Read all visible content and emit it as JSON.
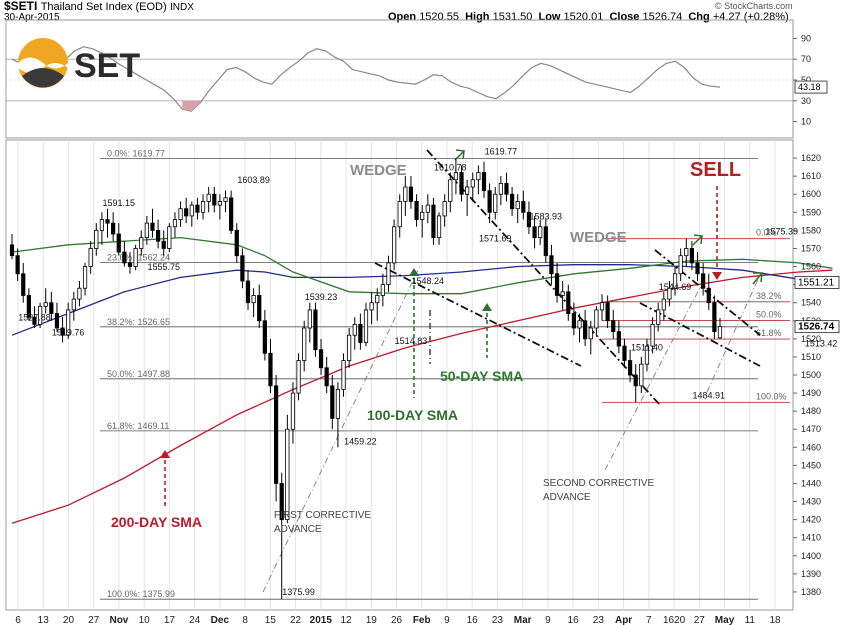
{
  "header": {
    "symbol": "$SETI",
    "name": "Thailand Set Index (EOD)",
    "exchange": "INDX",
    "date": "30-Apr-2015",
    "open_label": "Open",
    "open": "1520.55",
    "high_label": "High",
    "high": "1531.50",
    "low_label": "Low",
    "low": "1520.01",
    "close_label": "Close",
    "close": "1526.74",
    "chg_label": "Chg",
    "chg": "+4.27 (+0.28%)",
    "copyright": "© StockCharts.com"
  },
  "logo_text": "SET",
  "rsi_panel": {
    "ticks": [
      "90",
      "70",
      "50",
      "30",
      "10"
    ],
    "tick_values": [
      90,
      70,
      50,
      30,
      10
    ],
    "current_value": "43.18",
    "current": 43.18,
    "series": [
      70,
      66,
      62,
      57,
      56,
      66,
      70,
      78,
      82,
      80,
      76,
      71,
      65,
      60,
      55,
      50,
      45,
      40,
      32,
      22,
      20,
      28,
      40,
      50,
      60,
      62,
      58,
      52,
      48,
      46,
      55,
      62,
      68,
      76,
      80,
      78,
      72,
      68,
      60,
      58,
      56,
      54,
      50,
      48,
      47,
      46,
      50,
      55,
      54,
      48,
      44,
      42,
      38,
      34,
      32,
      38,
      45,
      54,
      62,
      66,
      64,
      60,
      56,
      52,
      48,
      46,
      44,
      42,
      40,
      38,
      44,
      52,
      60,
      66,
      68,
      62,
      52,
      46,
      44,
      43.18
    ]
  },
  "colors": {
    "candle_up": "#ffffff",
    "candle_down": "#000000",
    "sma200": "#c0182b",
    "sma100": "#1f2d8a",
    "sma50": "#2f7a2f",
    "sell": "#b32020",
    "wedge_label": "#8c8c8c",
    "arrow_green": "#2f6e2f",
    "fib_red": "#b53535"
  },
  "annotations": {
    "wedge1": "WEDGE",
    "wedge2": "WEDGE",
    "sell": "SELL",
    "sma50": "50-DAY SMA",
    "sma100": "100-DAY SMA",
    "sma200": "200-DAY SMA",
    "first_adv_1": "FIRST CORRECTIVE",
    "first_adv_2": "ADVANCE",
    "second_adv_1": "SECOND CORRECTIVE",
    "second_adv_2": "ADVANCE"
  },
  "chart_data": {
    "type": "candlestick",
    "title": "Thailand Set Index (EOD)",
    "ylim": [
      1370,
      1630
    ],
    "y_ticks": [
      1380,
      1390,
      1400,
      1410,
      1420,
      1430,
      1440,
      1450,
      1460,
      1470,
      1480,
      1490,
      1500,
      1510,
      1520,
      1530,
      1540,
      1550,
      1560,
      1570,
      1580,
      1590,
      1600,
      1610,
      1620
    ],
    "x_tick_labels": [
      "6",
      "13",
      "20",
      "27",
      "Nov",
      "10",
      "17",
      "24",
      "Dec",
      "8",
      "15",
      "22",
      "2015",
      "12",
      "19",
      "26",
      "Feb",
      "9",
      "16",
      "23",
      "Mar",
      "9",
      "16",
      "23",
      "Apr",
      "7",
      "1620",
      "27",
      "May",
      "11",
      "18"
    ],
    "price_labels": [
      {
        "text": "1527.88",
        "x": 4,
        "y": 1527.88
      },
      {
        "text": "1519.76",
        "x": 10,
        "y": 1519.76
      },
      {
        "text": "1591.15",
        "x": 19,
        "y": 1591.15
      },
      {
        "text": "1555.75",
        "x": 27,
        "y": 1555.75
      },
      {
        "text": "1603.89",
        "x": 43,
        "y": 1603.89
      },
      {
        "text": "1539.23",
        "x": 55,
        "y": 1539.23
      },
      {
        "text": "1375.99",
        "x": 51,
        "y": 1375.99
      },
      {
        "text": "1459.22",
        "x": 62,
        "y": 1459.22
      },
      {
        "text": "1514.83",
        "x": 71,
        "y": 1514.83
      },
      {
        "text": "1548.24",
        "x": 74,
        "y": 1548.24
      },
      {
        "text": "1610.78",
        "x": 78,
        "y": 1610.78
      },
      {
        "text": "1571.69",
        "x": 86,
        "y": 1571.69
      },
      {
        "text": "1619.77",
        "x": 87,
        "y": 1619.77
      },
      {
        "text": "1583.93",
        "x": 95,
        "y": 1583.93
      },
      {
        "text": "1511.40",
        "x": 113,
        "y": 1511.4
      },
      {
        "text": "1544.69",
        "x": 118,
        "y": 1544.69
      },
      {
        "text": "1484.91",
        "x": 124,
        "y": 1484.91
      },
      {
        "text": "1575.39",
        "x": 137,
        "y": 1575.39
      },
      {
        "text": "1513.42",
        "x": 144,
        "y": 1513.42
      }
    ],
    "fib_main": [
      {
        "label": "0.0%: 1619.77",
        "value": 1619.77
      },
      {
        "label": "23.6%: 1562.24",
        "value": 1562.24
      },
      {
        "label": "38.2%: 1526.65",
        "value": 1526.65
      },
      {
        "label": "50.0%: 1497.88",
        "value": 1497.88
      },
      {
        "label": "61.8%: 1469.11",
        "value": 1469.11
      },
      {
        "label": "100.0%: 1375.99",
        "value": 1375.99
      }
    ],
    "fib_minor": [
      {
        "label": "0.0%",
        "value": 1575.39
      },
      {
        "label": "38.2%",
        "value": 1540.5
      },
      {
        "label": "50.0%",
        "value": 1530.2
      },
      {
        "label": "61.8%",
        "value": 1519.9
      },
      {
        "label": "100.0%",
        "value": 1484.91
      }
    ],
    "last_value_labels": [
      {
        "text": "1551.21",
        "value": 1551.21
      },
      {
        "text": "1526.74",
        "value": 1526.74
      }
    ],
    "sma200": [
      [
        0,
        1418
      ],
      [
        10,
        1428
      ],
      [
        20,
        1443
      ],
      [
        30,
        1461
      ],
      [
        40,
        1478
      ],
      [
        50,
        1492
      ],
      [
        60,
        1505
      ],
      [
        70,
        1515
      ],
      [
        80,
        1523
      ],
      [
        90,
        1530
      ],
      [
        100,
        1537
      ],
      [
        110,
        1543
      ],
      [
        120,
        1549
      ],
      [
        130,
        1554
      ],
      [
        140,
        1557
      ],
      [
        146,
        1558
      ]
    ],
    "sma100": [
      [
        0,
        1522
      ],
      [
        10,
        1534
      ],
      [
        20,
        1546
      ],
      [
        30,
        1554
      ],
      [
        40,
        1558
      ],
      [
        45,
        1557
      ],
      [
        50,
        1554
      ],
      [
        60,
        1554
      ],
      [
        70,
        1555
      ],
      [
        80,
        1557
      ],
      [
        90,
        1560
      ],
      [
        100,
        1561
      ],
      [
        110,
        1561
      ],
      [
        120,
        1560
      ],
      [
        130,
        1558
      ],
      [
        140,
        1553
      ],
      [
        146,
        1551.21
      ]
    ],
    "sma50": [
      [
        0,
        1568
      ],
      [
        10,
        1572
      ],
      [
        20,
        1574
      ],
      [
        30,
        1576
      ],
      [
        40,
        1572
      ],
      [
        45,
        1566
      ],
      [
        50,
        1557
      ],
      [
        60,
        1546
      ],
      [
        70,
        1545
      ],
      [
        80,
        1545
      ],
      [
        90,
        1551
      ],
      [
        100,
        1556
      ],
      [
        110,
        1559
      ],
      [
        120,
        1563
      ],
      [
        130,
        1564
      ],
      [
        140,
        1562
      ],
      [
        146,
        1559
      ]
    ],
    "candles": [
      [
        0,
        1572,
        1578,
        1564,
        1566
      ],
      [
        1,
        1566,
        1570,
        1552,
        1556
      ],
      [
        2,
        1556,
        1562,
        1540,
        1544
      ],
      [
        3,
        1544,
        1548,
        1530,
        1532
      ],
      [
        4,
        1532,
        1538,
        1526,
        1528
      ],
      [
        5,
        1528,
        1540,
        1526,
        1538
      ],
      [
        6,
        1538,
        1548,
        1534,
        1540
      ],
      [
        7,
        1540,
        1546,
        1530,
        1534
      ],
      [
        8,
        1534,
        1540,
        1524,
        1526
      ],
      [
        9,
        1526,
        1532,
        1518,
        1522
      ],
      [
        10,
        1522,
        1540,
        1520,
        1536
      ],
      [
        11,
        1536,
        1546,
        1530,
        1542
      ],
      [
        12,
        1542,
        1552,
        1538,
        1548
      ],
      [
        13,
        1548,
        1562,
        1544,
        1560
      ],
      [
        14,
        1560,
        1574,
        1556,
        1570
      ],
      [
        15,
        1570,
        1584,
        1566,
        1580
      ],
      [
        16,
        1580,
        1590,
        1572,
        1586
      ],
      [
        17,
        1586,
        1592,
        1576,
        1584
      ],
      [
        18,
        1584,
        1590,
        1574,
        1578
      ],
      [
        19,
        1578,
        1584,
        1566,
        1568
      ],
      [
        20,
        1568,
        1574,
        1560,
        1562
      ],
      [
        21,
        1562,
        1568,
        1556,
        1560
      ],
      [
        22,
        1560,
        1572,
        1558,
        1570
      ],
      [
        23,
        1570,
        1580,
        1566,
        1576
      ],
      [
        24,
        1576,
        1588,
        1572,
        1584
      ],
      [
        25,
        1584,
        1592,
        1576,
        1580
      ],
      [
        26,
        1580,
        1586,
        1570,
        1574
      ],
      [
        27,
        1574,
        1580,
        1566,
        1570
      ],
      [
        28,
        1570,
        1584,
        1568,
        1582
      ],
      [
        29,
        1582,
        1590,
        1576,
        1586
      ],
      [
        30,
        1586,
        1596,
        1582,
        1592
      ],
      [
        31,
        1592,
        1598,
        1584,
        1588
      ],
      [
        32,
        1588,
        1596,
        1582,
        1594
      ],
      [
        33,
        1594,
        1598,
        1586,
        1590
      ],
      [
        34,
        1590,
        1600,
        1586,
        1596
      ],
      [
        35,
        1596,
        1604,
        1590,
        1600
      ],
      [
        36,
        1600,
        1604,
        1590,
        1594
      ],
      [
        37,
        1594,
        1600,
        1586,
        1596
      ],
      [
        38,
        1596,
        1602,
        1590,
        1598
      ],
      [
        39,
        1598,
        1602,
        1578,
        1580
      ],
      [
        40,
        1580,
        1584,
        1562,
        1566
      ],
      [
        41,
        1566,
        1570,
        1548,
        1552
      ],
      [
        42,
        1552,
        1558,
        1536,
        1540
      ],
      [
        43,
        1540,
        1548,
        1532,
        1544
      ],
      [
        44,
        1544,
        1550,
        1526,
        1530
      ],
      [
        45,
        1530,
        1536,
        1508,
        1512
      ],
      [
        46,
        1512,
        1520,
        1490,
        1494
      ],
      [
        47,
        1494,
        1500,
        1430,
        1440
      ],
      [
        48,
        1440,
        1446,
        1376,
        1420
      ],
      [
        49,
        1420,
        1478,
        1418,
        1470
      ],
      [
        50,
        1470,
        1496,
        1462,
        1490
      ],
      [
        51,
        1490,
        1512,
        1486,
        1508
      ],
      [
        52,
        1508,
        1530,
        1502,
        1526
      ],
      [
        53,
        1526,
        1540,
        1518,
        1536
      ],
      [
        54,
        1536,
        1540,
        1510,
        1514
      ],
      [
        55,
        1514,
        1520,
        1500,
        1504
      ],
      [
        56,
        1504,
        1510,
        1490,
        1494
      ],
      [
        57,
        1494,
        1500,
        1470,
        1476
      ],
      [
        58,
        1476,
        1496,
        1460,
        1492
      ],
      [
        59,
        1492,
        1512,
        1488,
        1508
      ],
      [
        60,
        1508,
        1526,
        1504,
        1522
      ],
      [
        61,
        1522,
        1532,
        1514,
        1528
      ],
      [
        62,
        1528,
        1534,
        1514,
        1518
      ],
      [
        63,
        1518,
        1540,
        1516,
        1536
      ],
      [
        64,
        1536,
        1546,
        1528,
        1540
      ],
      [
        65,
        1540,
        1548,
        1530,
        1544
      ],
      [
        66,
        1544,
        1556,
        1538,
        1550
      ],
      [
        67,
        1550,
        1566,
        1546,
        1562
      ],
      [
        68,
        1562,
        1586,
        1558,
        1582
      ],
      [
        69,
        1582,
        1600,
        1576,
        1596
      ],
      [
        70,
        1596,
        1610,
        1588,
        1604
      ],
      [
        71,
        1604,
        1610,
        1592,
        1596
      ],
      [
        72,
        1596,
        1600,
        1582,
        1586
      ],
      [
        73,
        1586,
        1594,
        1576,
        1590
      ],
      [
        74,
        1590,
        1600,
        1584,
        1594
      ],
      [
        75,
        1594,
        1598,
        1572,
        1576
      ],
      [
        76,
        1576,
        1590,
        1572,
        1588
      ],
      [
        77,
        1588,
        1600,
        1582,
        1596
      ],
      [
        78,
        1596,
        1612,
        1590,
        1608
      ],
      [
        79,
        1608,
        1619.77,
        1600,
        1612
      ],
      [
        80,
        1612,
        1616,
        1596,
        1600
      ],
      [
        81,
        1600,
        1608,
        1588,
        1604
      ],
      [
        82,
        1604,
        1612,
        1596,
        1608
      ],
      [
        83,
        1608,
        1616,
        1600,
        1612
      ],
      [
        84,
        1612,
        1618,
        1598,
        1602
      ],
      [
        85,
        1602,
        1606,
        1584,
        1590
      ],
      [
        86,
        1590,
        1604,
        1586,
        1600
      ],
      [
        87,
        1600,
        1610,
        1594,
        1606
      ],
      [
        88,
        1606,
        1612,
        1596,
        1600
      ],
      [
        89,
        1600,
        1604,
        1588,
        1592
      ],
      [
        90,
        1592,
        1600,
        1584,
        1596
      ],
      [
        91,
        1596,
        1602,
        1586,
        1590
      ],
      [
        92,
        1590,
        1596,
        1578,
        1582
      ],
      [
        93,
        1582,
        1588,
        1570,
        1576
      ],
      [
        94,
        1576,
        1586,
        1572,
        1582
      ],
      [
        95,
        1582,
        1586,
        1562,
        1566
      ],
      [
        96,
        1566,
        1572,
        1550,
        1556
      ],
      [
        97,
        1556,
        1562,
        1540,
        1544
      ],
      [
        98,
        1544,
        1552,
        1536,
        1546
      ],
      [
        99,
        1546,
        1550,
        1530,
        1534
      ],
      [
        100,
        1534,
        1540,
        1522,
        1526
      ],
      [
        101,
        1526,
        1534,
        1518,
        1530
      ],
      [
        102,
        1530,
        1536,
        1516,
        1520
      ],
      [
        103,
        1520,
        1530,
        1511.4,
        1526
      ],
      [
        104,
        1526,
        1538,
        1522,
        1536
      ],
      [
        105,
        1536,
        1544.69,
        1530,
        1540
      ],
      [
        106,
        1540,
        1544,
        1526,
        1530
      ],
      [
        107,
        1530,
        1536,
        1520,
        1524
      ],
      [
        108,
        1524,
        1530,
        1512,
        1516
      ],
      [
        109,
        1516,
        1520,
        1504,
        1508
      ],
      [
        110,
        1508,
        1514,
        1496,
        1500
      ],
      [
        111,
        1500,
        1506,
        1484.91,
        1494
      ],
      [
        112,
        1494,
        1510,
        1490,
        1506
      ],
      [
        113,
        1506,
        1520,
        1502,
        1516
      ],
      [
        114,
        1516,
        1532,
        1512,
        1528
      ],
      [
        115,
        1528,
        1540,
        1524,
        1536
      ],
      [
        116,
        1536,
        1546,
        1530,
        1542
      ],
      [
        117,
        1542,
        1552,
        1538,
        1548
      ],
      [
        118,
        1548,
        1560,
        1544,
        1556
      ],
      [
        119,
        1556,
        1570,
        1552,
        1566
      ],
      [
        120,
        1566,
        1575.39,
        1560,
        1570
      ],
      [
        121,
        1570,
        1574,
        1558,
        1562
      ],
      [
        122,
        1562,
        1568,
        1552,
        1556
      ],
      [
        123,
        1556,
        1562,
        1544,
        1548
      ],
      [
        124,
        1548,
        1556,
        1536,
        1540
      ],
      [
        125,
        1540,
        1544,
        1520,
        1524
      ],
      [
        126,
        1520.55,
        1531.5,
        1520.01,
        1526.74
      ]
    ]
  }
}
